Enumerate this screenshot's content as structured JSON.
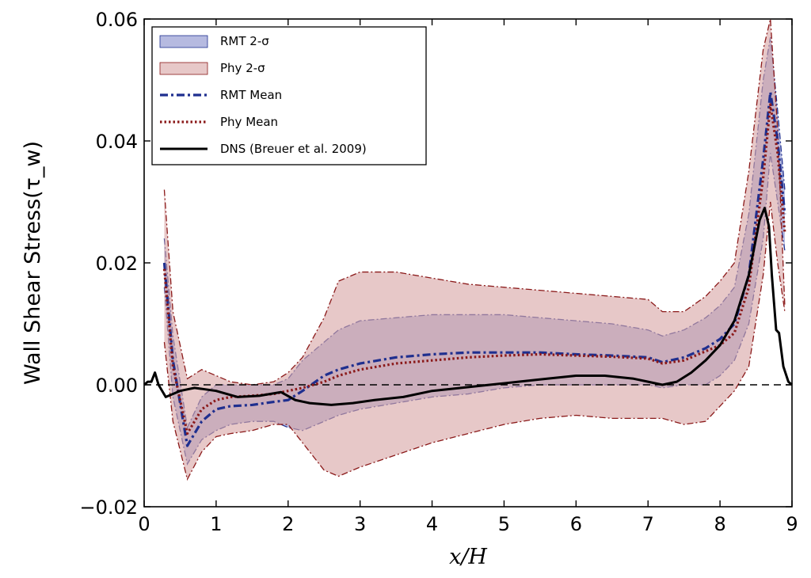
{
  "chart_data": {
    "type": "line",
    "xlabel": "x/H",
    "ylabel": "Wall Shear Stress(τ_w)",
    "xlim": [
      0,
      9
    ],
    "ylim": [
      -0.02,
      0.06
    ],
    "x_ticks": [
      "0",
      "1",
      "2",
      "3",
      "4",
      "5",
      "6",
      "7",
      "8",
      "9"
    ],
    "y_ticks": [
      "−0.02",
      "0.00",
      "0.02",
      "0.04",
      "0.06"
    ],
    "grid": false,
    "legend_position": "top-left",
    "zero_reference_line": 0.0,
    "colors": {
      "rmt_band": "#a9aeda",
      "phy_band": "#d9a6a6",
      "rmt_line": "#1f2f8f",
      "phy_line": "#8b1a1a",
      "dns_line": "#000000"
    },
    "series": [
      {
        "name": "RMT 2-σ",
        "kind": "band",
        "x": [
          0.28,
          0.4,
          0.6,
          0.8,
          1.0,
          1.2,
          1.5,
          1.8,
          2.0,
          2.2,
          2.5,
          2.7,
          3.0,
          3.5,
          4.0,
          4.5,
          5.0,
          5.5,
          6.0,
          6.5,
          7.0,
          7.2,
          7.5,
          7.8,
          8.0,
          8.2,
          8.4,
          8.6,
          8.7,
          8.8,
          8.9
        ],
        "upper": [
          0.024,
          0.008,
          -0.007,
          -0.002,
          0.0,
          0.0,
          0.0,
          0.0,
          0.001,
          0.004,
          0.007,
          0.009,
          0.0105,
          0.011,
          0.0115,
          0.0115,
          0.0115,
          0.011,
          0.0105,
          0.01,
          0.009,
          0.008,
          0.009,
          0.011,
          0.013,
          0.016,
          0.028,
          0.05,
          0.057,
          0.045,
          0.032
        ],
        "lower": [
          0.016,
          -0.002,
          -0.013,
          -0.009,
          -0.0075,
          -0.0065,
          -0.006,
          -0.006,
          -0.007,
          -0.0075,
          -0.006,
          -0.005,
          -0.004,
          -0.003,
          -0.002,
          -0.0015,
          -0.0005,
          0.0,
          0.0,
          0.0,
          0.0,
          -0.0005,
          0.0,
          0.0,
          0.0015,
          0.004,
          0.01,
          0.024,
          0.038,
          0.03,
          0.022
        ]
      },
      {
        "name": "Phy 2-σ",
        "kind": "band",
        "x": [
          0.28,
          0.4,
          0.6,
          0.8,
          1.0,
          1.2,
          1.5,
          1.8,
          2.0,
          2.2,
          2.5,
          2.7,
          3.0,
          3.5,
          4.0,
          4.5,
          5.0,
          5.5,
          6.0,
          6.5,
          7.0,
          7.2,
          7.5,
          7.8,
          8.0,
          8.2,
          8.4,
          8.6,
          8.7,
          8.8,
          8.9
        ],
        "upper": [
          0.032,
          0.012,
          0.001,
          0.0025,
          0.0015,
          0.0005,
          0.0,
          0.0005,
          0.002,
          0.0045,
          0.011,
          0.017,
          0.0185,
          0.0185,
          0.0175,
          0.0165,
          0.016,
          0.0155,
          0.015,
          0.0145,
          0.014,
          0.012,
          0.012,
          0.0145,
          0.017,
          0.02,
          0.035,
          0.055,
          0.06,
          0.042,
          0.013
        ],
        "lower": [
          0.007,
          -0.006,
          -0.0155,
          -0.011,
          -0.0085,
          -0.008,
          -0.0075,
          -0.0065,
          -0.0065,
          -0.0095,
          -0.014,
          -0.015,
          -0.0135,
          -0.0115,
          -0.0095,
          -0.008,
          -0.0065,
          -0.0055,
          -0.005,
          -0.0055,
          -0.0055,
          -0.0055,
          -0.0065,
          -0.006,
          -0.0035,
          -0.001,
          0.003,
          0.018,
          0.03,
          0.02,
          0.012
        ]
      },
      {
        "name": "RMT Mean",
        "kind": "line",
        "style": "dashdot",
        "x": [
          0.28,
          0.4,
          0.6,
          0.8,
          1.0,
          1.2,
          1.5,
          1.8,
          2.0,
          2.2,
          2.5,
          2.7,
          3.0,
          3.5,
          4.0,
          4.5,
          5.0,
          5.5,
          6.0,
          6.5,
          7.0,
          7.2,
          7.5,
          7.8,
          8.0,
          8.2,
          8.4,
          8.6,
          8.7,
          8.8,
          8.9
        ],
        "y": [
          0.02,
          0.004,
          -0.01,
          -0.006,
          -0.004,
          -0.0035,
          -0.0033,
          -0.0028,
          -0.0025,
          -0.001,
          0.0015,
          0.0025,
          0.0035,
          0.0045,
          0.005,
          0.0053,
          0.0053,
          0.0053,
          0.005,
          0.0048,
          0.0045,
          0.0037,
          0.0045,
          0.006,
          0.0075,
          0.01,
          0.018,
          0.037,
          0.048,
          0.04,
          0.028
        ]
      },
      {
        "name": "Phy Mean",
        "kind": "line",
        "style": "dotted",
        "x": [
          0.28,
          0.4,
          0.6,
          0.8,
          1.0,
          1.2,
          1.5,
          1.8,
          2.0,
          2.2,
          2.5,
          2.7,
          3.0,
          3.5,
          4.0,
          4.5,
          5.0,
          5.5,
          6.0,
          6.5,
          7.0,
          7.2,
          7.5,
          7.8,
          8.0,
          8.2,
          8.4,
          8.6,
          8.7,
          8.8,
          8.9
        ],
        "y": [
          0.019,
          0.003,
          -0.008,
          -0.004,
          -0.0025,
          -0.002,
          -0.0018,
          -0.0015,
          -0.001,
          -0.0005,
          0.0005,
          0.0015,
          0.0025,
          0.0035,
          0.004,
          0.0045,
          0.0048,
          0.005,
          0.0048,
          0.0046,
          0.0043,
          0.0035,
          0.004,
          0.0055,
          0.0065,
          0.0085,
          0.016,
          0.034,
          0.046,
          0.038,
          0.025
        ]
      },
      {
        "name": "DNS (Breuer et al. 2009)",
        "kind": "line",
        "style": "solid",
        "x": [
          0.0,
          0.05,
          0.1,
          0.15,
          0.2,
          0.3,
          0.5,
          0.7,
          1.0,
          1.3,
          1.6,
          1.9,
          2.1,
          2.3,
          2.6,
          2.9,
          3.2,
          3.6,
          4.0,
          4.4,
          4.8,
          5.2,
          5.6,
          6.0,
          6.4,
          6.8,
          7.0,
          7.2,
          7.4,
          7.6,
          7.8,
          8.0,
          8.2,
          8.4,
          8.55,
          8.62,
          8.68,
          8.72,
          8.78,
          8.82,
          8.88,
          8.95,
          9.0
        ],
        "y": [
          0.0,
          0.0005,
          0.0005,
          0.002,
          0.0,
          -0.002,
          -0.001,
          -0.0005,
          -0.001,
          -0.002,
          -0.0018,
          -0.0012,
          -0.0025,
          -0.003,
          -0.0033,
          -0.003,
          -0.0025,
          -0.002,
          -0.001,
          -0.0005,
          0.0,
          0.0005,
          0.001,
          0.0015,
          0.0015,
          0.001,
          0.0005,
          0.0,
          0.0005,
          0.002,
          0.004,
          0.0065,
          0.0105,
          0.018,
          0.027,
          0.029,
          0.026,
          0.018,
          0.009,
          0.0085,
          0.003,
          0.0005,
          0.0
        ]
      }
    ]
  }
}
